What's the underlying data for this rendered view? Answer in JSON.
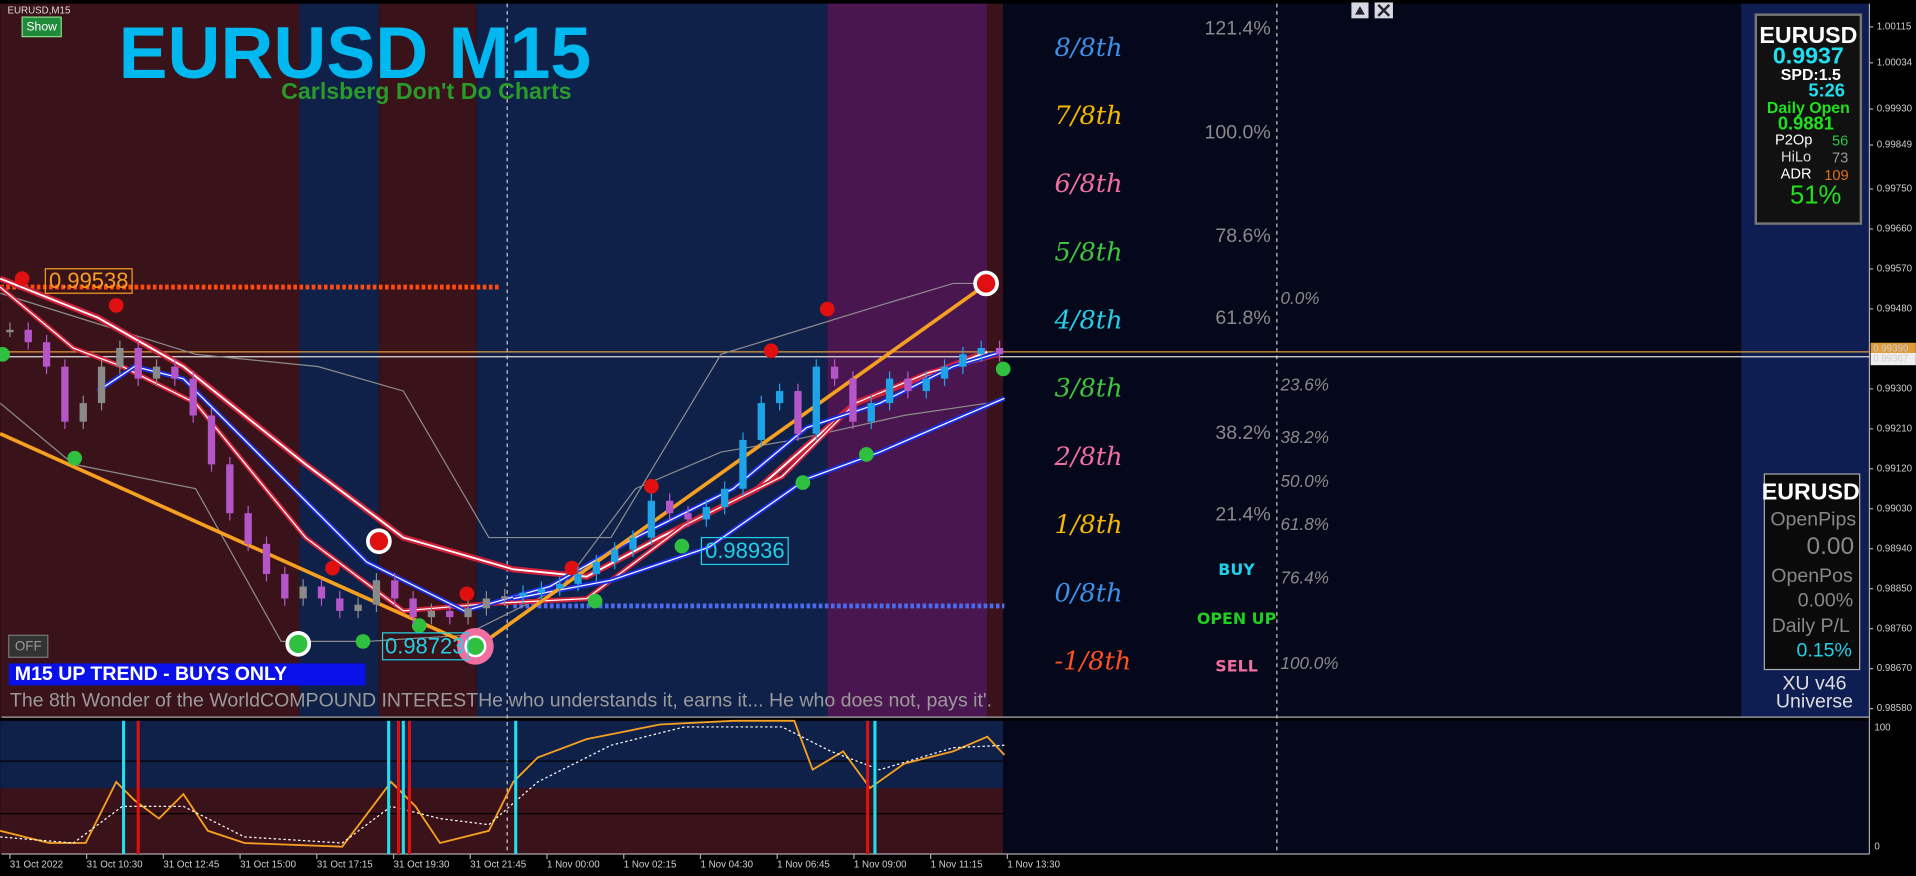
{
  "window": {
    "symbol_tag": "EURUSD,M15",
    "show_button": "Show",
    "off_button": "OFF"
  },
  "title": "EURUSD M15",
  "subtitle": "Carlsberg Don't Do Charts",
  "trend_banner": "M15 UP TREND - BUYS ONLY",
  "quote": "The 8th Wonder of the WorldCOMPOUND INTERESTHe who understands it, earns it... He who does not, pays it'.",
  "price_labels": [
    "0.99538",
    "0.98936",
    "0.98723"
  ],
  "murrey_levels": [
    "8/8th",
    "7/8th",
    "6/8th",
    "5/8th",
    "4/8th",
    "3/8th",
    "2/8th",
    "1/8th",
    "0/8th",
    "-1/8th"
  ],
  "fib_levels": [
    "121.4%",
    "100.0%",
    "78.6%",
    "61.8%",
    "38.2%",
    "21.4%"
  ],
  "fib_levels_right": [
    "0.0%",
    "23.6%",
    "38.2%",
    "50.0%",
    "61.8%",
    "76.4%",
    "100.0%"
  ],
  "signals": [
    "BUY",
    "OPEN UP",
    "SELL"
  ],
  "info_panel": {
    "symbol": "EURUSD",
    "price": "0.9937",
    "spread": "SPD:1.5",
    "timer": "5:26",
    "daily_open_label": "Daily Open",
    "daily_open": "0.9881",
    "rows": [
      [
        "P2Op",
        "56"
      ],
      [
        "HiLo",
        "73"
      ],
      [
        "ADR",
        "109"
      ]
    ],
    "percent": "51%"
  },
  "account_panel": {
    "symbol": "EURUSD",
    "open_pips_label": "OpenPips",
    "open_pips": "0.00",
    "open_pos_label": "OpenPos",
    "open_pos": "0.00%",
    "daily_pl_label": "Daily P/L",
    "daily_pl": "0.15%",
    "version": "XU v46",
    "universe": "Universe"
  },
  "price_axis": [
    "1.00115",
    "1.00034",
    "0.99930",
    "0.99849",
    "0.99750",
    "0.99660",
    "0.99570",
    "0.99480",
    "0.99300",
    "0.99210",
    "0.99120",
    "0.99030",
    "0.98940",
    "0.98850",
    "0.98760",
    "0.98670",
    "0.98580"
  ],
  "line_price": "0.99390",
  "current_price": "0.99367",
  "time_axis": [
    "31 Oct 2022",
    "31 Oct 10:30",
    "31 Oct 12:45",
    "31 Oct 15:00",
    "31 Oct 17:15",
    "31 Oct 19:30",
    "31 Oct 21:45",
    "1 Nov 00:00",
    "1 Nov 02:15",
    "1 Nov 04:30",
    "1 Nov 06:45",
    "1 Nov 09:00",
    "1 Nov 11:15",
    "1 Nov 13:30"
  ],
  "oscillator_axis": [
    "100",
    "0"
  ],
  "closes": [
    0.99433,
    0.99405,
    0.9935,
    0.99226,
    0.99268,
    0.9935,
    0.99392,
    0.99323,
    0.9935,
    0.99323,
    0.9924,
    0.9913,
    0.9902,
    0.98951,
    0.98883,
    0.98828,
    0.98855,
    0.98828,
    0.988,
    0.98814,
    0.98869,
    0.98828,
    0.98786,
    0.988,
    0.98786,
    0.98806,
    0.98828,
    0.98833,
    0.98841,
    0.9885,
    0.98861,
    0.98883,
    0.9891,
    0.98938,
    0.98965,
    0.99048,
    0.9902,
    0.99006,
    0.99034,
    0.99075,
    0.99185,
    0.99268,
    0.99295,
    0.99199,
    0.9935,
    0.99323,
    0.99226,
    0.99268,
    0.99323,
    0.99295,
    0.99323,
    0.9935,
    0.99378,
    0.99392,
    0.99378
  ]
}
